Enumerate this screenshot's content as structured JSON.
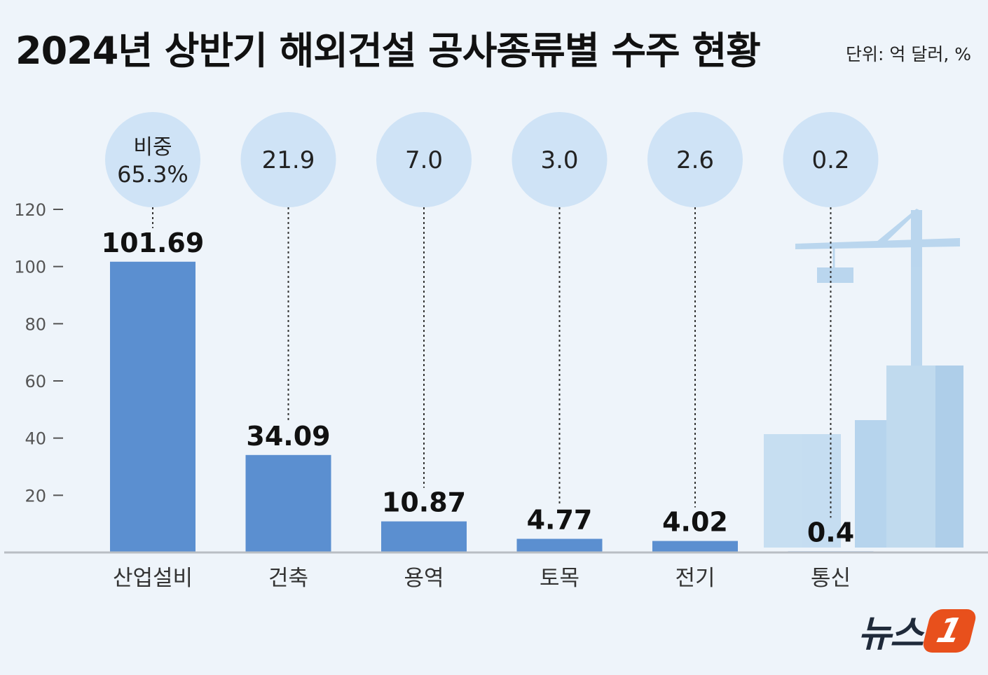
{
  "header": {
    "title": "2024년 상반기 해외건설 공사종류별 수주 현황",
    "unit": "단위: 억 달러, %"
  },
  "logo": {
    "text": "뉴스",
    "badge": "1"
  },
  "colors": {
    "bar": "#5b8fd0",
    "bubble": "#cfe3f6",
    "background": "#eef4fa",
    "building": "#a9cdea"
  },
  "chart_data": {
    "type": "bar",
    "categories": [
      "산업설비",
      "건축",
      "용역",
      "토목",
      "전기",
      "통신"
    ],
    "values": [
      101.69,
      34.09,
      10.87,
      4.77,
      4.02,
      0.4
    ],
    "value_labels": [
      "101.69",
      "34.09",
      "10.87",
      "4.77",
      "4.02",
      "0.4"
    ],
    "share_prefix": "비중",
    "share_labels": [
      "65.3%",
      "21.9",
      "7.0",
      "3.0",
      "2.6",
      "0.2"
    ],
    "shares": [
      65.3,
      21.9,
      7.0,
      3.0,
      2.6,
      0.2
    ],
    "yticks": [
      20,
      40,
      60,
      80,
      100,
      120
    ],
    "ylim": [
      0,
      120
    ],
    "grid": false,
    "legend": "none"
  }
}
